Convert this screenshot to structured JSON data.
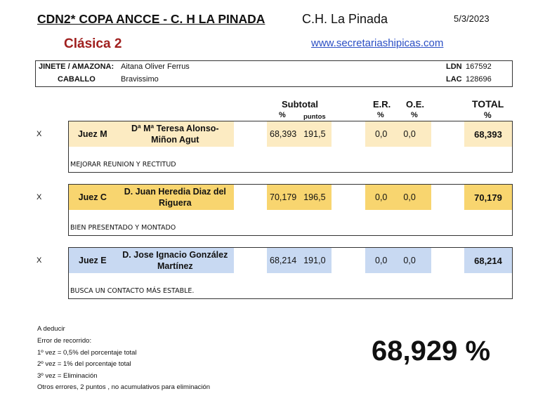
{
  "header": {
    "title": "CDN2*  COPA ANCCE - C. H LA PINADA",
    "venue": "C.H. La Pinada",
    "date": "5/3/2023",
    "class": "Clásica 2",
    "website": "www.secretariashipicas.com"
  },
  "info": {
    "rider_label": "JINETE / AMAZONA:",
    "rider": "Aitana Oliver Ferrus",
    "horse_label": "CABALLO",
    "horse": "Bravissimo",
    "ldn_label": "LDN",
    "ldn": "167592",
    "lac_label": "LAC",
    "lac": "128696"
  },
  "columns": {
    "subtotal": "Subtotal",
    "pct": "%",
    "puntos": "puntos",
    "er": "E.R.",
    "oe": "O.E.",
    "total": "TOTAL"
  },
  "judges": [
    {
      "mark": "X",
      "position": "Juez M",
      "name": "Dª Mª Teresa Alonso-Miñon Agut",
      "pct": "68,393",
      "puntos": "191,5",
      "er": "0,0",
      "oe": "0,0",
      "total": "68,393",
      "comment": "MEJORAR REUNION Y RECTITUD",
      "color": "#fcebc2"
    },
    {
      "mark": "X",
      "position": "Juez C",
      "name": "D. Juan Heredia Diaz del Riguera",
      "pct": "70,179",
      "puntos": "196,5",
      "er": "0,0",
      "oe": "0,0",
      "total": "70,179",
      "comment": "BIEN PRESENTADO Y MONTADO",
      "color": "#f8d56f"
    },
    {
      "mark": "X",
      "position": "Juez E",
      "name": "D. Jose Ignacio González Martínez",
      "pct": "68,214",
      "puntos": "191,0",
      "er": "0,0",
      "oe": "0,0",
      "total": "68,214",
      "comment": "BUSCA UN CONTACTO MÁS ESTABLE.",
      "color": "#c8d9f2"
    }
  ],
  "footer": {
    "lines": [
      "A deducir",
      "Error de recorrido:",
      "1º vez = 0,5% del porcentaje total",
      "2º vez = 1% del porcentaje total",
      "3º vez = Eliminación",
      "Otros errores, 2 puntos , no acumulativos para eliminación"
    ],
    "final_score": "68,929 %"
  }
}
